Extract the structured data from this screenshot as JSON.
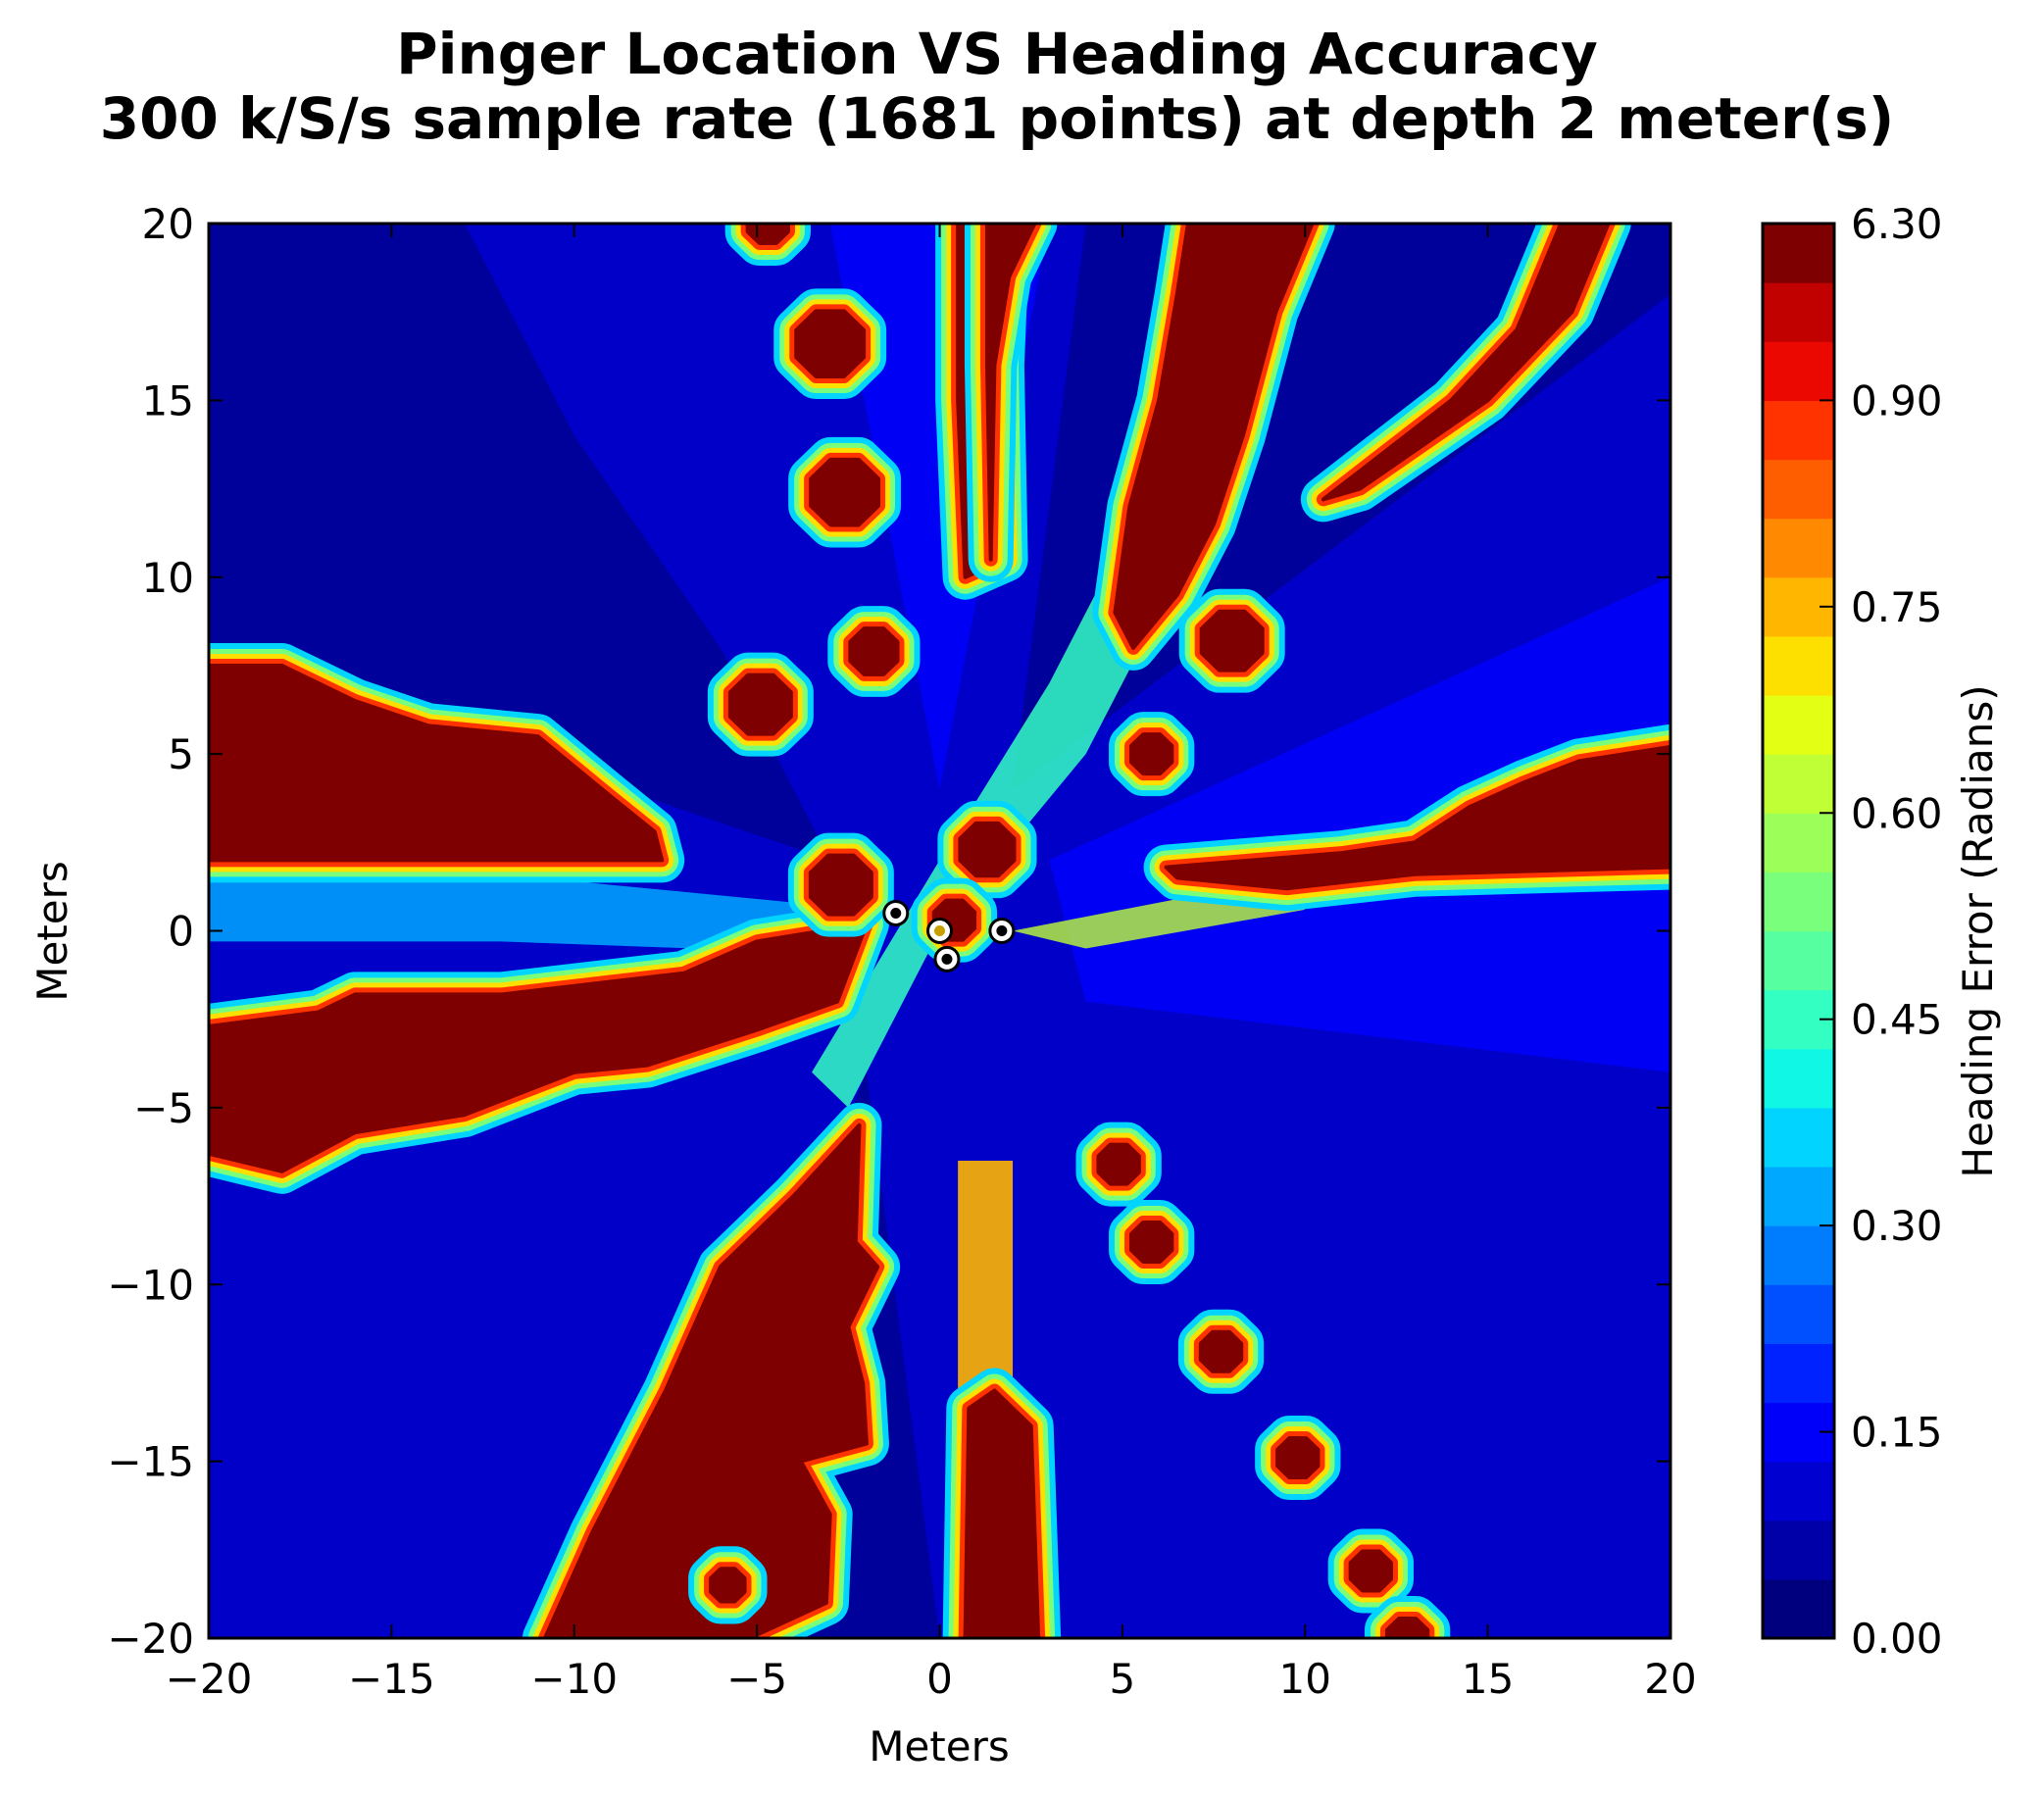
{
  "chart_data": {
    "type": "heatmap",
    "title": "Pinger Location VS Heading Accuracy",
    "subtitle": "300 k/S/s sample rate (1681 points) at depth 2 meter(s)",
    "xlabel": "Meters",
    "ylabel": "Meters",
    "xlim": [
      -20,
      20
    ],
    "ylim": [
      -20,
      20
    ],
    "x_ticks": [
      "−20",
      "−15",
      "−10",
      "−5",
      "0",
      "5",
      "10",
      "15",
      "20"
    ],
    "y_ticks": [
      "20",
      "15",
      "10",
      "5",
      "0",
      "−5",
      "−10",
      "−15",
      "−20"
    ],
    "colorbar": {
      "label": "Heading Error (Radians)",
      "range": [
        0.0,
        6.3
      ],
      "ticks": [
        "6.30",
        "0.90",
        "0.75",
        "0.60",
        "0.45",
        "0.30",
        "0.15",
        "0.00"
      ],
      "colors": [
        "#00007f",
        "#0000a8",
        "#0000d1",
        "#0000fa",
        "#0022ff",
        "#0050ff",
        "#007cff",
        "#00a8ff",
        "#00d4ff",
        "#10f7e6",
        "#33ffc3",
        "#56ff9f",
        "#79ff7c",
        "#9cff59",
        "#c0ff36",
        "#e3ff13",
        "#fee000",
        "#ffb600",
        "#ff8900",
        "#ff5e00",
        "#ff3300",
        "#ea0800",
        "#c10000",
        "#7f0000"
      ]
    },
    "background_level_colors": [
      "#00008f",
      "#0000c8",
      "#0000ff"
    ],
    "hydrophones": [
      {
        "x": -1.2,
        "y": 0.5
      },
      {
        "x": 0.0,
        "y": 0.0
      },
      {
        "x": 1.7,
        "y": 0.0
      },
      {
        "x": 0.2,
        "y": -0.8
      }
    ],
    "high_error_regions": [
      {
        "name": "left-upper-band",
        "points": [
          [
            -20,
            7.5
          ],
          [
            -18,
            7.5
          ],
          [
            -16,
            6.5
          ],
          [
            -14,
            5.8
          ],
          [
            -11,
            5.5
          ],
          [
            -9,
            3.8
          ],
          [
            -7.8,
            2.8
          ],
          [
            -7.6,
            2
          ],
          [
            -20,
            2
          ]
        ]
      },
      {
        "name": "left-lower-band",
        "points": [
          [
            -20,
            -2.7
          ],
          [
            -17,
            -2.3
          ],
          [
            -16,
            -1.8
          ],
          [
            -12,
            -1.8
          ],
          [
            -7,
            -1.2
          ],
          [
            -5,
            -0.3
          ],
          [
            -2,
            0.2
          ],
          [
            -2.8,
            -2
          ],
          [
            -5,
            -2.8
          ],
          [
            -8,
            -3.8
          ],
          [
            -10,
            -4
          ],
          [
            -13,
            -5.2
          ],
          [
            -16,
            -5.7
          ],
          [
            -18,
            -6.8
          ],
          [
            -20,
            -6.3
          ]
        ]
      },
      {
        "name": "lower-left-band",
        "points": [
          [
            -10.8,
            -20
          ],
          [
            -9.5,
            -17
          ],
          [
            -7.5,
            -13
          ],
          [
            -6,
            -9.5
          ],
          [
            -4,
            -7.5
          ],
          [
            -2.2,
            -5.5
          ],
          [
            -2.3,
            -8.8
          ],
          [
            -1.7,
            -9.5
          ],
          [
            -2.5,
            -11.2
          ],
          [
            -2.1,
            -12.8
          ],
          [
            -2,
            -14.5
          ],
          [
            -3.8,
            -15
          ],
          [
            -3,
            -16.5
          ],
          [
            -3.1,
            -19
          ],
          [
            -5.2,
            -20
          ]
        ]
      },
      {
        "name": "lower-center-band",
        "points": [
          [
            0.7,
            -20
          ],
          [
            0.8,
            -13.5
          ],
          [
            1.5,
            -13
          ],
          [
            2.5,
            -14
          ],
          [
            2.7,
            -20
          ]
        ]
      },
      {
        "name": "upper-center-band",
        "points": [
          [
            0.5,
            20
          ],
          [
            1.1,
            20
          ],
          [
            1.8,
            18.5
          ],
          [
            1.7,
            16
          ],
          [
            1.8,
            10.5
          ],
          [
            0.7,
            10
          ],
          [
            0.5,
            15
          ]
        ]
      },
      {
        "name": "upper-center-right-band",
        "points": [
          [
            1.3,
            20
          ],
          [
            2.6,
            20
          ],
          [
            1.9,
            18.5
          ],
          [
            1.5,
            16
          ],
          [
            1.4,
            10.5
          ],
          [
            1.3,
            16
          ]
        ]
      },
      {
        "name": "upper-right-diagonal",
        "points": [
          [
            6.8,
            20
          ],
          [
            10.2,
            20
          ],
          [
            9.2,
            17.5
          ],
          [
            8.3,
            14
          ],
          [
            7.5,
            11.5
          ],
          [
            6.5,
            9.5
          ],
          [
            5.3,
            8
          ],
          [
            4.8,
            9
          ],
          [
            5.2,
            12
          ],
          [
            6,
            15
          ],
          [
            6.5,
            18
          ]
        ]
      },
      {
        "name": "far-right-band",
        "points": [
          [
            6.2,
            1.8
          ],
          [
            11,
            2.2
          ],
          [
            13,
            2.5
          ],
          [
            14.5,
            3.5
          ],
          [
            16,
            4.2
          ],
          [
            17.5,
            4.8
          ],
          [
            20,
            5.2
          ],
          [
            20,
            1.8
          ],
          [
            13,
            1.6
          ],
          [
            9.5,
            1.2
          ],
          [
            6.5,
            1.5
          ]
        ]
      },
      {
        "name": "far-right-diagonal",
        "points": [
          [
            10.5,
            12.2
          ],
          [
            14,
            15
          ],
          [
            15.8,
            17
          ],
          [
            17,
            20
          ],
          [
            18.3,
            20
          ],
          [
            17.3,
            17.5
          ],
          [
            15,
            15
          ],
          [
            11.5,
            12.5
          ]
        ]
      }
    ],
    "islands": [
      {
        "cx": -3.0,
        "cy": 16.6,
        "r": 1.0
      },
      {
        "cx": -2.6,
        "cy": 12.4,
        "r": 1.0
      },
      {
        "cx": -1.8,
        "cy": 7.9,
        "r": 0.7
      },
      {
        "cx": -4.9,
        "cy": 6.4,
        "r": 0.9
      },
      {
        "cx": -2.7,
        "cy": 1.3,
        "r": 0.9
      },
      {
        "cx": 1.3,
        "cy": 2.3,
        "r": 0.8
      },
      {
        "cx": 0.4,
        "cy": 0.3,
        "r": 0.6
      },
      {
        "cx": 8.0,
        "cy": 8.2,
        "r": 0.9
      },
      {
        "cx": 5.8,
        "cy": 5.0,
        "r": 0.6
      },
      {
        "cx": 4.9,
        "cy": -6.6,
        "r": 0.6
      },
      {
        "cx": 5.8,
        "cy": -8.8,
        "r": 0.6
      },
      {
        "cx": 7.7,
        "cy": -11.9,
        "r": 0.6
      },
      {
        "cx": 9.8,
        "cy": -14.9,
        "r": 0.6
      },
      {
        "cx": 11.8,
        "cy": -18.1,
        "r": 0.6
      },
      {
        "cx": 12.8,
        "cy": -20.0,
        "r": 0.6
      },
      {
        "cx": -4.7,
        "cy": 20.0,
        "r": 0.6
      },
      {
        "cx": -5.8,
        "cy": -18.5,
        "r": 0.5
      }
    ]
  }
}
